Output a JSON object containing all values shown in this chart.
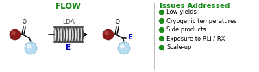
{
  "title": "FLOW",
  "title_color": "#1a8a1a",
  "title_fontsize": 8.5,
  "issues_title": "Issues Addressed",
  "issues_title_color": "#1a8a1a",
  "issues_title_fontsize": 7.5,
  "issues": [
    "Low yields",
    "Cryogenic temperatures",
    "Side products",
    "Exposure to RLi / RX",
    "Scale-up"
  ],
  "issues_fontsize": 6.0,
  "bullet_color": "#1a8a1a",
  "lda_text": "LDA",
  "lda_color": "#444444",
  "lda_fontsize": 6.5,
  "E_label_color": "#0000bb",
  "E_fontsize": 7.5,
  "dark_red": "#8B1A1A",
  "light_blue": "#b8ddf0",
  "coil_color": "#444444",
  "background": "#ffffff",
  "fig_width": 3.78,
  "fig_height": 1.06,
  "dpi": 100
}
